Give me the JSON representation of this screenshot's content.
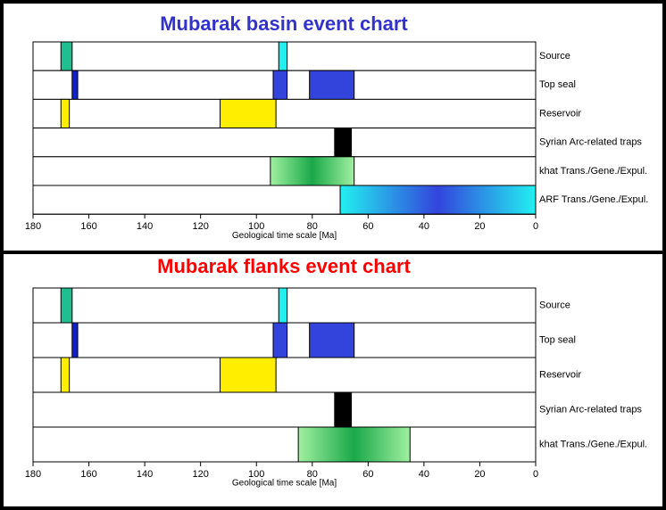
{
  "chart_data": [
    {
      "type": "event",
      "title": "Mubarak basin event chart",
      "title_color": "#3333cc",
      "xlabel": "Geological time scale [Ma]",
      "xlim": [
        180,
        0
      ],
      "xticks": [
        180,
        160,
        140,
        120,
        100,
        80,
        60,
        40,
        20,
        0
      ],
      "rows": [
        {
          "name": "Source",
          "events": [
            {
              "start": 170,
              "end": 166,
              "colors": [
                "#1fbf8f"
              ]
            },
            {
              "start": 92,
              "end": 89,
              "colors": [
                "#22eeee"
              ]
            }
          ]
        },
        {
          "name": "Top seal",
          "events": [
            {
              "start": 166,
              "end": 164,
              "colors": [
                "#1122cc"
              ]
            },
            {
              "start": 94,
              "end": 89,
              "colors": [
                "#3344dd"
              ]
            },
            {
              "start": 81,
              "end": 65,
              "colors": [
                "#3344dd"
              ]
            }
          ]
        },
        {
          "name": "Reservoir",
          "events": [
            {
              "start": 170,
              "end": 167,
              "colors": [
                "#ffee00"
              ]
            },
            {
              "start": 113,
              "end": 93,
              "colors": [
                "#ffee00"
              ]
            }
          ]
        },
        {
          "name": "Syrian Arc-related traps",
          "events": [
            {
              "start": 72,
              "end": 66,
              "colors": [
                "#000000"
              ]
            }
          ]
        },
        {
          "name": "khat Trans./Gene./Expul.",
          "events": [
            {
              "start": 95,
              "end": 65,
              "colors": [
                "#a0f0a0",
                "#1aa84a",
                "#a0f0a0"
              ]
            }
          ]
        },
        {
          "name": "ARF Trans./Gene./Expul.",
          "events": [
            {
              "start": 70,
              "end": 0,
              "colors": [
                "#22f0f0",
                "#3344dd",
                "#22f0f0"
              ]
            }
          ]
        }
      ]
    },
    {
      "type": "event",
      "title": "Mubarak flanks event chart",
      "title_color": "#ff0000",
      "xlabel": "Geological time scale [Ma]",
      "xlim": [
        180,
        0
      ],
      "xticks": [
        180,
        160,
        140,
        120,
        100,
        80,
        60,
        40,
        20,
        0
      ],
      "rows": [
        {
          "name": "Source",
          "events": [
            {
              "start": 170,
              "end": 166,
              "colors": [
                "#1fbf8f"
              ]
            },
            {
              "start": 92,
              "end": 89,
              "colors": [
                "#22eeee"
              ]
            }
          ]
        },
        {
          "name": "Top seal",
          "events": [
            {
              "start": 166,
              "end": 164,
              "colors": [
                "#1122cc"
              ]
            },
            {
              "start": 94,
              "end": 89,
              "colors": [
                "#3344dd"
              ]
            },
            {
              "start": 81,
              "end": 65,
              "colors": [
                "#3344dd"
              ]
            }
          ]
        },
        {
          "name": "Reservoir",
          "events": [
            {
              "start": 170,
              "end": 167,
              "colors": [
                "#ffee00"
              ]
            },
            {
              "start": 113,
              "end": 93,
              "colors": [
                "#ffee00"
              ]
            }
          ]
        },
        {
          "name": "Syrian Arc-related traps",
          "events": [
            {
              "start": 72,
              "end": 66,
              "colors": [
                "#000000"
              ]
            }
          ]
        },
        {
          "name": "khat Trans./Gene./Expul.",
          "events": [
            {
              "start": 85,
              "end": 45,
              "colors": [
                "#a0f0a0",
                "#1aa84a",
                "#a0f0a0"
              ]
            }
          ]
        }
      ]
    }
  ]
}
